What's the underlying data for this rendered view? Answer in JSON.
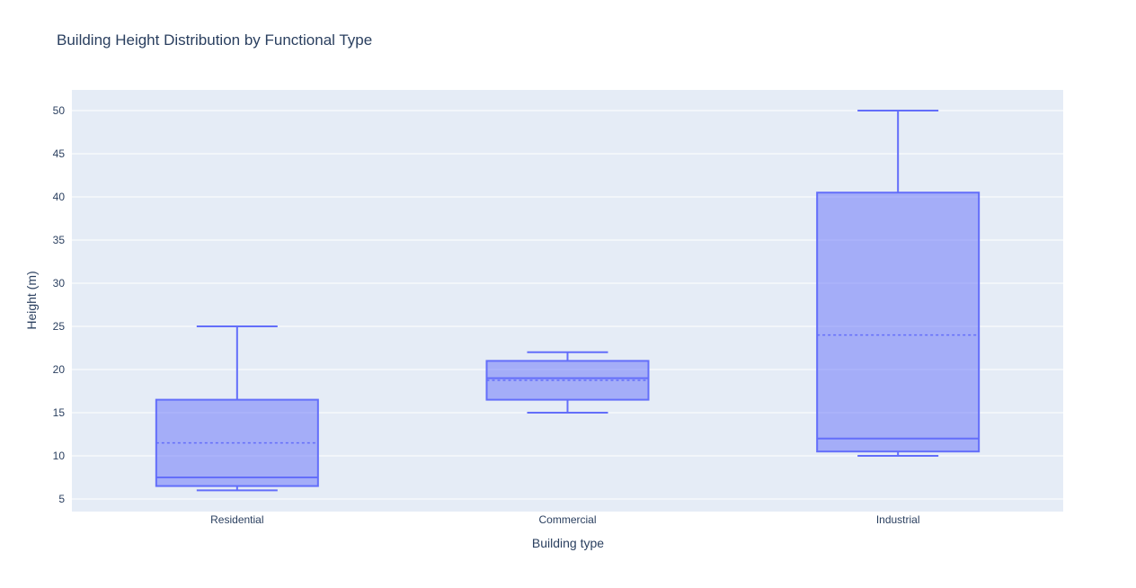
{
  "chart_data": {
    "type": "box",
    "title": "Building Height Distribution by Functional Type",
    "xlabel": "Building type",
    "ylabel": "Height (m)",
    "categories": [
      "Residential",
      "Commercial",
      "Industrial"
    ],
    "boxes": [
      {
        "category": "Residential",
        "lowerfence": 6,
        "q1": 6.5,
        "median": 7.5,
        "mean": 11.5,
        "q3": 16.5,
        "upperfence": 25
      },
      {
        "category": "Commercial",
        "lowerfence": 15,
        "q1": 16.5,
        "median": 19,
        "mean": 18.75,
        "q3": 21,
        "upperfence": 22
      },
      {
        "category": "Industrial",
        "lowerfence": 10,
        "q1": 10.5,
        "median": 12,
        "mean": 24,
        "q3": 40.5,
        "upperfence": 50
      }
    ],
    "yticks": [
      5,
      10,
      15,
      20,
      25,
      30,
      35,
      40,
      45,
      50
    ],
    "ylim": [
      3.54,
      52.4
    ],
    "grid": true,
    "colors": {
      "box_line": "#636efa",
      "box_fill": "rgba(99,110,250,0.5)",
      "plot_bg": "#e5ecf6",
      "text": "#2a3f5f"
    }
  }
}
